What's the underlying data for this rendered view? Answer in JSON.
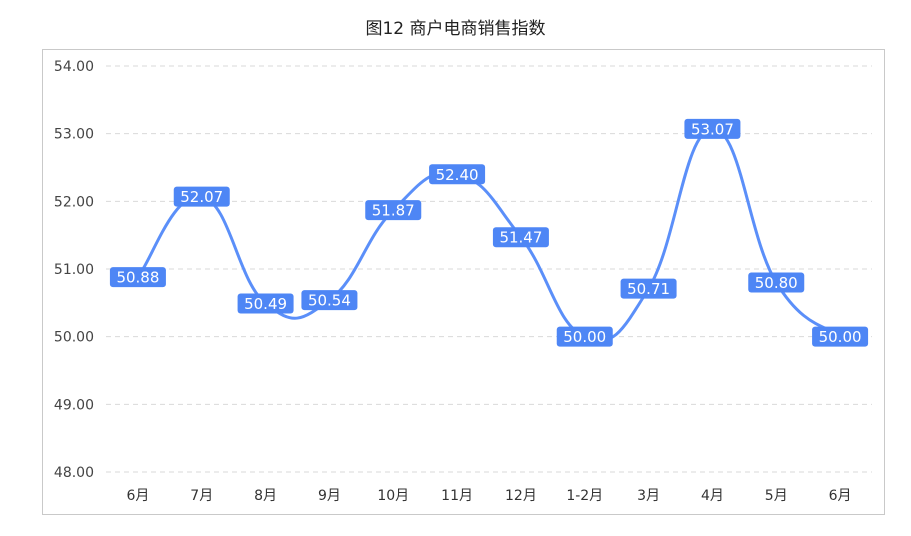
{
  "chart_data": {
    "type": "line",
    "title": "图12 商户电商销售指数",
    "categories": [
      "6月",
      "7月",
      "8月",
      "9月",
      "10月",
      "11月",
      "12月",
      "1-2月",
      "3月",
      "4月",
      "5月",
      "6月"
    ],
    "series": [
      {
        "values": [
          50.88,
          52.07,
          50.49,
          50.54,
          51.87,
          52.4,
          51.47,
          50.0,
          50.71,
          53.07,
          50.8,
          50.0
        ]
      }
    ],
    "data_labels": [
      "50.88",
      "52.07",
      "50.49",
      "50.54",
      "51.87",
      "52.40",
      "51.47",
      "50.00",
      "50.71",
      "53.07",
      "50.80",
      "50.00"
    ],
    "ylim": [
      48,
      54
    ],
    "yticks": [
      "48.00",
      "49.00",
      "50.00",
      "51.00",
      "52.00",
      "53.00",
      "54.00"
    ],
    "grid": true,
    "smooth": true,
    "colors": {
      "line": "#5b8ff9",
      "label_bg": "#4e86f5",
      "grid": "#d9d9d9"
    }
  }
}
